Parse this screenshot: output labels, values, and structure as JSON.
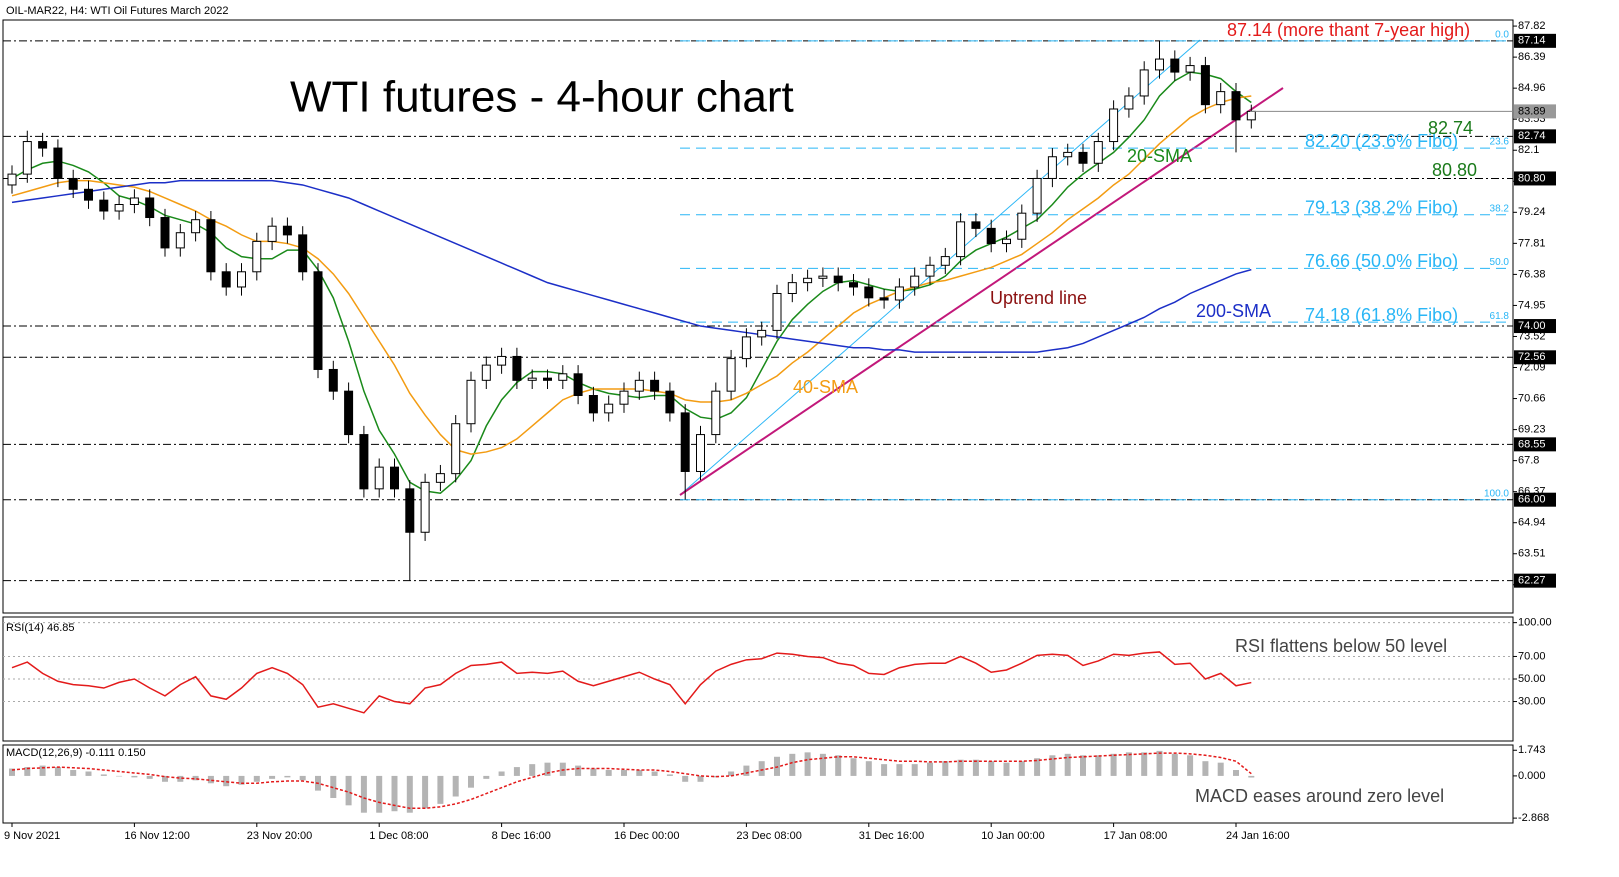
{
  "chart_data": [
    {
      "type": "candlestick",
      "header": "OIL-MAR22, H4:  WTI Oil Futures March 2022",
      "title": "WTI futures - 4-hour chart",
      "categories": [
        "9 Nov 2021",
        null,
        null,
        null,
        null,
        null,
        null,
        null,
        "16 Nov 12:00",
        null,
        null,
        null,
        null,
        null,
        null,
        null,
        "23 Nov 20:00",
        null,
        null,
        null,
        null,
        null,
        null,
        null,
        "1 Dec 08:00",
        null,
        null,
        null,
        null,
        null,
        null,
        null,
        "8 Dec 16:00",
        null,
        null,
        null,
        null,
        null,
        null,
        null,
        "16 Dec 00:00",
        null,
        null,
        null,
        null,
        null,
        null,
        null,
        "23 Dec 08:00",
        null,
        null,
        null,
        null,
        null,
        null,
        null,
        "31 Dec 16:00",
        null,
        null,
        null,
        null,
        null,
        null,
        null,
        "10 Jan 00:00",
        null,
        null,
        null,
        null,
        null,
        null,
        null,
        "17 Jan 08:00",
        null,
        null,
        null,
        null,
        null,
        null,
        null,
        "24 Jan 16:00",
        null
      ],
      "open": [
        80.5,
        81.0,
        82.5,
        82.2,
        80.8,
        80.3,
        79.8,
        79.3,
        79.6,
        79.9,
        79.0,
        77.6,
        78.3,
        78.9,
        76.5,
        75.8,
        76.5,
        77.9,
        78.6,
        78.2,
        76.5,
        72.0,
        71.0,
        69.0,
        66.5,
        67.5,
        66.5,
        64.5,
        66.8,
        67.2,
        69.5,
        71.5,
        72.2,
        72.6,
        71.5,
        71.6,
        71.5,
        71.8,
        70.8,
        70.0,
        70.4,
        71.0,
        71.5,
        71.0,
        70.0,
        67.3,
        69.0,
        71.0,
        72.5,
        73.5,
        73.8,
        75.5,
        76.0,
        76.2,
        76.3,
        76.0,
        75.8,
        75.3,
        75.2,
        75.8,
        76.3,
        76.8,
        77.2,
        78.8,
        78.5,
        77.8,
        78.0,
        79.2,
        80.8,
        81.8,
        82.0,
        81.5,
        82.5,
        84.0,
        84.6,
        85.8,
        86.3,
        85.7,
        86.0,
        84.2,
        84.8,
        83.5
      ],
      "high": [
        81.4,
        83.0,
        82.9,
        82.6,
        81.2,
        80.7,
        80.2,
        80.0,
        80.3,
        80.3,
        79.4,
        78.7,
        79.3,
        79.3,
        76.9,
        76.9,
        78.3,
        79.0,
        79.0,
        78.6,
        76.9,
        72.4,
        71.4,
        69.4,
        67.9,
        67.9,
        66.9,
        67.2,
        67.6,
        69.9,
        71.9,
        72.6,
        73.0,
        73.0,
        72.0,
        72.0,
        72.2,
        72.2,
        71.2,
        70.8,
        71.4,
        71.9,
        71.9,
        71.4,
        70.4,
        69.4,
        71.4,
        72.9,
        73.9,
        74.2,
        75.9,
        76.4,
        76.6,
        76.7,
        76.7,
        76.4,
        76.2,
        75.7,
        76.2,
        76.7,
        77.2,
        77.6,
        79.2,
        79.2,
        78.9,
        78.4,
        79.6,
        81.2,
        82.2,
        82.4,
        82.4,
        82.9,
        84.4,
        85.0,
        86.2,
        87.14,
        86.7,
        86.4,
        86.4,
        85.2,
        85.2,
        84.2
      ],
      "low": [
        80.1,
        80.6,
        81.8,
        80.4,
        79.9,
        79.4,
        78.9,
        78.9,
        79.2,
        78.6,
        77.2,
        77.2,
        77.9,
        76.1,
        75.4,
        75.4,
        76.1,
        77.5,
        77.8,
        76.1,
        71.6,
        70.6,
        68.6,
        66.1,
        66.1,
        66.1,
        62.27,
        64.1,
        66.4,
        66.8,
        69.1,
        71.1,
        71.8,
        71.1,
        71.1,
        71.1,
        71.1,
        70.4,
        69.6,
        69.6,
        70.0,
        70.6,
        70.6,
        69.6,
        66.0,
        66.9,
        68.6,
        70.6,
        72.1,
        73.1,
        73.4,
        75.1,
        75.6,
        75.8,
        75.6,
        75.4,
        74.9,
        74.8,
        74.8,
        75.4,
        75.9,
        76.4,
        76.8,
        78.1,
        77.4,
        77.4,
        77.6,
        78.8,
        80.4,
        81.4,
        81.1,
        81.1,
        82.1,
        83.6,
        84.2,
        85.4,
        85.3,
        85.3,
        83.8,
        83.8,
        82.0,
        83.1
      ],
      "close": [
        81.0,
        82.5,
        82.2,
        80.8,
        80.3,
        79.8,
        79.3,
        79.6,
        79.9,
        79.0,
        77.6,
        78.3,
        78.9,
        76.5,
        75.8,
        76.5,
        77.9,
        78.6,
        78.2,
        76.5,
        72.0,
        71.0,
        69.0,
        66.5,
        67.5,
        66.5,
        64.5,
        66.8,
        67.2,
        69.5,
        71.5,
        72.2,
        72.6,
        71.5,
        71.6,
        71.5,
        71.8,
        70.8,
        70.0,
        70.4,
        71.0,
        71.5,
        71.0,
        70.0,
        67.3,
        69.0,
        71.0,
        72.5,
        73.5,
        73.8,
        75.5,
        76.0,
        76.2,
        76.3,
        76.0,
        75.8,
        75.3,
        75.2,
        75.8,
        76.3,
        76.8,
        77.2,
        78.8,
        78.5,
        77.8,
        78.0,
        79.2,
        80.8,
        81.8,
        82.0,
        81.5,
        82.5,
        84.0,
        84.6,
        85.8,
        86.3,
        85.7,
        86.0,
        84.2,
        84.8,
        83.5,
        83.89
      ],
      "up_color": "#ffffff",
      "down_color": "#000000",
      "series": [
        {
          "name": "20-SMA",
          "color": "#1a8a1a",
          "values": [
            80.8,
            81.2,
            81.5,
            81.6,
            81.4,
            81.1,
            80.6,
            80.0,
            79.8,
            79.5,
            79.1,
            78.9,
            78.7,
            78.3,
            77.6,
            77.2,
            77.1,
            77.1,
            77.5,
            77.5,
            76.6,
            75.3,
            73.3,
            71.0,
            69.2,
            68.1,
            66.8,
            66.4,
            66.3,
            66.9,
            67.8,
            69.4,
            70.6,
            71.4,
            71.9,
            71.9,
            71.8,
            71.4,
            71.1,
            70.9,
            70.8,
            70.7,
            70.8,
            70.8,
            70.2,
            69.8,
            69.7,
            70.0,
            70.7,
            72.0,
            73.3,
            74.3,
            75.0,
            75.6,
            76.0,
            76.1,
            75.9,
            75.7,
            75.6,
            75.7,
            75.9,
            76.3,
            77.0,
            77.5,
            77.8,
            78.1,
            78.5,
            78.9,
            79.6,
            80.4,
            81.0,
            81.5,
            82.0,
            82.7,
            83.5,
            84.6,
            85.3,
            85.7,
            85.6,
            85.4,
            84.8,
            84.3
          ]
        },
        {
          "name": "40-SMA",
          "color": "#f39c12",
          "values": [
            80.0,
            80.2,
            80.4,
            80.6,
            80.7,
            80.7,
            80.6,
            80.5,
            80.4,
            80.2,
            79.9,
            79.6,
            79.3,
            78.9,
            78.6,
            78.2,
            77.9,
            77.9,
            77.8,
            77.6,
            77.1,
            76.4,
            75.5,
            74.4,
            73.3,
            72.2,
            70.9,
            69.9,
            69.0,
            68.3,
            68.1,
            68.2,
            68.4,
            68.8,
            69.4,
            70.0,
            70.6,
            70.9,
            71.1,
            71.1,
            71.1,
            71.1,
            71.0,
            70.9,
            70.6,
            70.5,
            70.5,
            70.6,
            70.9,
            71.3,
            71.7,
            72.3,
            72.8,
            73.4,
            74.0,
            74.6,
            75.0,
            75.3,
            75.6,
            75.8,
            76.0,
            76.1,
            76.3,
            76.5,
            76.7,
            77.0,
            77.3,
            77.8,
            78.3,
            78.9,
            79.4,
            79.9,
            80.5,
            81.0,
            81.7,
            82.4,
            83.0,
            83.6,
            84.0,
            84.3,
            84.5,
            84.6
          ]
        },
        {
          "name": "200-SMA",
          "color": "#1c2fc7",
          "values": [
            79.7,
            79.8,
            79.9,
            80.0,
            80.1,
            80.2,
            80.3,
            80.4,
            80.5,
            80.6,
            80.6,
            80.7,
            80.7,
            80.7,
            80.7,
            80.7,
            80.7,
            80.7,
            80.6,
            80.5,
            80.3,
            80.1,
            79.9,
            79.6,
            79.3,
            79.0,
            78.7,
            78.4,
            78.1,
            77.8,
            77.5,
            77.2,
            76.9,
            76.6,
            76.3,
            76.0,
            75.8,
            75.6,
            75.4,
            75.2,
            75.0,
            74.8,
            74.6,
            74.4,
            74.2,
            74.0,
            73.9,
            73.8,
            73.7,
            73.6,
            73.5,
            73.4,
            73.3,
            73.2,
            73.1,
            73.0,
            73.0,
            72.9,
            72.9,
            72.8,
            72.8,
            72.8,
            72.8,
            72.8,
            72.8,
            72.8,
            72.8,
            72.8,
            72.9,
            73.0,
            73.2,
            73.5,
            73.8,
            74.1,
            74.4,
            74.8,
            75.1,
            75.5,
            75.8,
            76.1,
            76.4,
            76.6
          ]
        }
      ],
      "ylim": [
        60.78,
        88.1
      ],
      "yticks": [
        87.82,
        86.39,
        84.96,
        83.53,
        82.1,
        80.67,
        79.24,
        77.81,
        76.38,
        74.95,
        73.52,
        72.09,
        70.66,
        69.23,
        67.8,
        66.37,
        64.94,
        63.51,
        62.08
      ],
      "levels": [
        87.14,
        82.74,
        {
          "value": 80.8,
          "label": "80.80"
        },
        {
          "value": 74,
          "label": "74.00"
        },
        72.56,
        68.55,
        {
          "value": 66,
          "label": "66.00"
        },
        62.27
      ],
      "last_price": 83.89,
      "fibo": [
        {
          "price": 87.14,
          "ratio": "0.0"
        },
        {
          "price": 82.2,
          "ratio": "23.6",
          "label": "82.20 (23.6% Fibo)"
        },
        {
          "price": 79.13,
          "ratio": "38.2",
          "label": "79.13 (38.2% Fibo)"
        },
        {
          "price": 76.66,
          "ratio": "50.0",
          "label": "76.66 (50.0% Fibo)"
        },
        {
          "price": 74.18,
          "ratio": "61.8",
          "label": "74.18 (61.8% Fibo)"
        },
        {
          "price": 66,
          "ratio": "100.0"
        }
      ],
      "annotations": {
        "high_note": "87.14 (more thant 7-year high)",
        "level_a": "82.74",
        "level_b": "80.80",
        "trend": "Uptrend line"
      }
    },
    {
      "type": "line",
      "header": "RSI(14) 46.85",
      "note": "RSI flattens below 50 level",
      "series": [
        {
          "color": "#e31a1a",
          "values": [
            60,
            65,
            55,
            48,
            45,
            44,
            42,
            47,
            50,
            42,
            35,
            45,
            52,
            35,
            32,
            42,
            55,
            60,
            55,
            45,
            25,
            28,
            24,
            20,
            35,
            30,
            28,
            42,
            45,
            55,
            62,
            63,
            65,
            55,
            56,
            55,
            57,
            48,
            44,
            48,
            52,
            56,
            50,
            45,
            28,
            45,
            57,
            63,
            67,
            68,
            73,
            72,
            70,
            69,
            64,
            62,
            55,
            54,
            60,
            63,
            64,
            64,
            70,
            64,
            56,
            58,
            64,
            71,
            72,
            71,
            62,
            66,
            72,
            71,
            73,
            74,
            63,
            64,
            50,
            55,
            44,
            46.85
          ]
        }
      ],
      "ylim": [
        -5,
        105
      ],
      "yticks": [
        {
          "value": 100,
          "label": "100.00"
        },
        {
          "value": 70,
          "label": "70.00"
        },
        {
          "value": 50,
          "label": "50.00"
        },
        {
          "value": 30,
          "label": "30.00"
        }
      ],
      "grid": true
    },
    {
      "type": "macd",
      "header": "MACD(12,26,9) -0.111 0.150",
      "note": "MACD eases around zero level",
      "series": [
        {
          "color": "#b4b4b4",
          "values": [
            0.5,
            0.6,
            0.7,
            0.6,
            0.4,
            0.3,
            0.1,
            0.0,
            -0.1,
            -0.2,
            -0.4,
            -0.4,
            -0.3,
            -0.5,
            -0.7,
            -0.6,
            -0.4,
            -0.2,
            -0.1,
            -0.3,
            -1.0,
            -1.5,
            -2.0,
            -2.5,
            -2.5,
            -2.4,
            -2.5,
            -2.2,
            -1.9,
            -1.4,
            -0.8,
            -0.2,
            0.3,
            0.6,
            0.8,
            0.9,
            0.9,
            0.7,
            0.5,
            0.4,
            0.4,
            0.4,
            0.3,
            0.1,
            -0.4,
            -0.4,
            -0.1,
            0.3,
            0.7,
            1.0,
            1.3,
            1.5,
            1.6,
            1.5,
            1.4,
            1.2,
            1.0,
            0.8,
            0.8,
            0.8,
            0.9,
            1.0,
            1.1,
            1.1,
            1.0,
            0.9,
            1.0,
            1.2,
            1.4,
            1.5,
            1.4,
            1.4,
            1.5,
            1.6,
            1.6,
            1.7,
            1.5,
            1.4,
            1.0,
            0.9,
            0.4,
            -0.111
          ]
        },
        {
          "color": "#e31a1a",
          "values": [
            0.4,
            0.5,
            0.55,
            0.6,
            0.55,
            0.5,
            0.4,
            0.3,
            0.2,
            0.1,
            -0.05,
            -0.15,
            -0.2,
            -0.3,
            -0.4,
            -0.5,
            -0.5,
            -0.4,
            -0.35,
            -0.35,
            -0.5,
            -0.8,
            -1.1,
            -1.5,
            -1.8,
            -2.0,
            -2.2,
            -2.2,
            -2.1,
            -1.9,
            -1.6,
            -1.2,
            -0.8,
            -0.4,
            -0.1,
            0.2,
            0.4,
            0.5,
            0.5,
            0.5,
            0.45,
            0.4,
            0.4,
            0.3,
            0.15,
            0.0,
            -0.05,
            0.0,
            0.2,
            0.4,
            0.6,
            0.9,
            1.1,
            1.2,
            1.3,
            1.3,
            1.2,
            1.1,
            1.0,
            1.0,
            0.95,
            0.95,
            1.0,
            1.0,
            1.0,
            1.0,
            1.0,
            1.05,
            1.15,
            1.25,
            1.3,
            1.35,
            1.4,
            1.45,
            1.5,
            1.55,
            1.55,
            1.5,
            1.4,
            1.25,
            1.0,
            0.15
          ]
        }
      ],
      "ylim": [
        -3.2,
        2.1
      ],
      "yticks": [
        1.743,
        {
          "value": 0,
          "label": "0.000"
        },
        -2.868
      ]
    }
  ]
}
